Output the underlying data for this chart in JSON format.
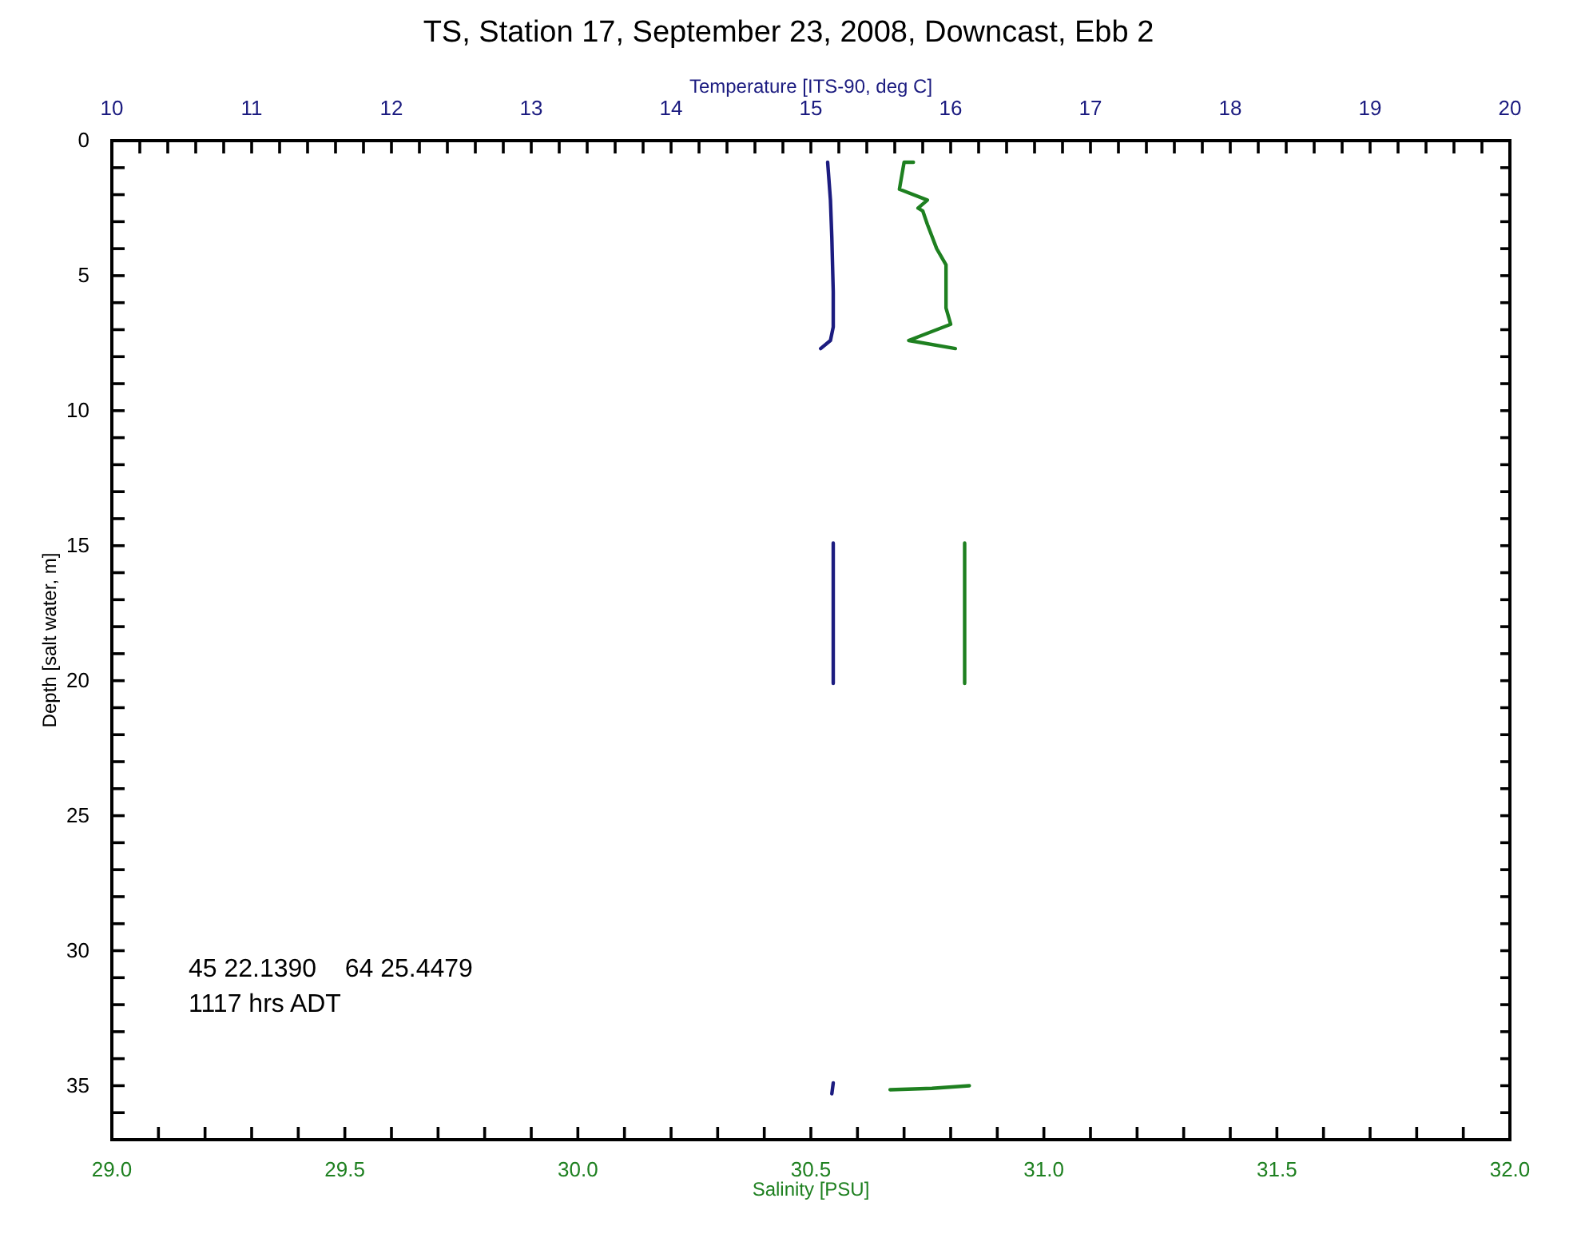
{
  "chart_data": {
    "type": "line",
    "title": "TS, Station 17, September 23, 2008, Downcast, Ebb 2",
    "x2label": "Temperature [ITS-90, deg C]",
    "xlabel": "Salinity [PSU]",
    "ylabel": "Depth [salt water, m]",
    "annotations": [
      "45 22.1390    64 25.4479",
      "1117 hrs ADT"
    ],
    "series": [
      {
        "color": "#1c1c80",
        "axis": "x2",
        "x": [
          15.12,
          15.14,
          15.15,
          15.16,
          15.16,
          15.14,
          15.07,
          null,
          15.16,
          15.16,
          null,
          15.16,
          15.15
        ],
        "values": [
          0.8,
          2.2,
          3.6,
          5.6,
          6.9,
          7.4,
          7.7,
          null,
          14.9,
          20.1,
          null,
          34.9,
          35.3
        ]
      },
      {
        "color": "#1e8020",
        "x": [
          30.72,
          30.7,
          30.69,
          30.75,
          30.73,
          30.74,
          30.75,
          30.77,
          30.79,
          30.79,
          30.79,
          30.8,
          30.71,
          30.81,
          null,
          30.83,
          30.83,
          null,
          30.67,
          30.76,
          30.84
        ],
        "values": [
          0.8,
          0.8,
          1.8,
          2.2,
          2.5,
          2.6,
          3.1,
          4.0,
          4.6,
          5.6,
          6.2,
          6.8,
          7.4,
          7.7,
          null,
          14.9,
          20.1,
          null,
          35.15,
          35.1,
          35.0
        ]
      }
    ],
    "ylim": [
      37,
      0
    ],
    "yticks": [
      0,
      {
        "value": 1,
        "label": null
      },
      {
        "value": 2,
        "label": null
      },
      {
        "value": 3,
        "label": null
      },
      {
        "value": 4,
        "label": null
      },
      5,
      {
        "value": 6,
        "label": null
      },
      {
        "value": 7,
        "label": null
      },
      {
        "value": 8,
        "label": null
      },
      {
        "value": 9,
        "label": null
      },
      10,
      {
        "value": 11,
        "label": null
      },
      {
        "value": 12,
        "label": null
      },
      {
        "value": 13,
        "label": null
      },
      {
        "value": 14,
        "label": null
      },
      15,
      {
        "value": 16,
        "label": null
      },
      {
        "value": 17,
        "label": null
      },
      {
        "value": 18,
        "label": null
      },
      {
        "value": 19,
        "label": null
      },
      20,
      {
        "value": 21,
        "label": null
      },
      {
        "value": 22,
        "label": null
      },
      {
        "value": 23,
        "label": null
      },
      {
        "value": 24,
        "label": null
      },
      25,
      {
        "value": 26,
        "label": null
      },
      {
        "value": 27,
        "label": null
      },
      {
        "value": 28,
        "label": null
      },
      {
        "value": 29,
        "label": null
      },
      30,
      {
        "value": 31,
        "label": null
      },
      {
        "value": 32,
        "label": null
      },
      {
        "value": 33,
        "label": null
      },
      {
        "value": 34,
        "label": null
      },
      35,
      {
        "value": 36,
        "label": null
      }
    ],
    "xlim": [
      29,
      32
    ],
    "xticks": [
      {
        "value": 29,
        "label": "29.0"
      },
      {
        "value": 29.1,
        "label": null
      },
      {
        "value": 29.2,
        "label": null
      },
      {
        "value": 29.3,
        "label": null
      },
      {
        "value": 29.4,
        "label": null
      },
      29.5,
      {
        "value": 29.6,
        "label": null
      },
      {
        "value": 29.7,
        "label": null
      },
      {
        "value": 29.8,
        "label": null
      },
      {
        "value": 29.9,
        "label": null
      },
      {
        "value": 30,
        "label": "30.0"
      },
      {
        "value": 30.1,
        "label": null
      },
      {
        "value": 30.2,
        "label": null
      },
      {
        "value": 30.3,
        "label": null
      },
      {
        "value": 30.4,
        "label": null
      },
      30.5,
      {
        "value": 30.6,
        "label": null
      },
      {
        "value": 30.7,
        "label": null
      },
      {
        "value": 30.8,
        "label": null
      },
      {
        "value": 30.9,
        "label": null
      },
      {
        "value": 31,
        "label": "31.0"
      },
      {
        "value": 31.1,
        "label": null
      },
      {
        "value": 31.2,
        "label": null
      },
      {
        "value": 31.3,
        "label": null
      },
      {
        "value": 31.4,
        "label": null
      },
      31.5,
      {
        "value": 31.6,
        "label": null
      },
      {
        "value": 31.7,
        "label": null
      },
      {
        "value": 31.8,
        "label": null
      },
      {
        "value": 31.9,
        "label": null
      },
      {
        "value": 32,
        "label": "32.0"
      }
    ],
    "x2lim": [
      10,
      20
    ],
    "x2ticks": [
      10,
      {
        "value": 10.2,
        "label": null
      },
      {
        "value": 10.4,
        "label": null
      },
      {
        "value": 10.6,
        "label": null
      },
      {
        "value": 10.8,
        "label": null
      },
      11,
      {
        "value": 11.2,
        "label": null
      },
      {
        "value": 11.4,
        "label": null
      },
      {
        "value": 11.6,
        "label": null
      },
      {
        "value": 11.8,
        "label": null
      },
      12,
      {
        "value": 12.2,
        "label": null
      },
      {
        "value": 12.4,
        "label": null
      },
      {
        "value": 12.6,
        "label": null
      },
      {
        "value": 12.8,
        "label": null
      },
      13,
      {
        "value": 13.2,
        "label": null
      },
      {
        "value": 13.4,
        "label": null
      },
      {
        "value": 13.6,
        "label": null
      },
      {
        "value": 13.8,
        "label": null
      },
      14,
      {
        "value": 14.2,
        "label": null
      },
      {
        "value": 14.4,
        "label": null
      },
      {
        "value": 14.6,
        "label": null
      },
      {
        "value": 14.8,
        "label": null
      },
      15,
      {
        "value": 15.2,
        "label": null
      },
      {
        "value": 15.4,
        "label": null
      },
      {
        "value": 15.6,
        "label": null
      },
      {
        "value": 15.8,
        "label": null
      },
      16,
      {
        "value": 16.2,
        "label": null
      },
      {
        "value": 16.4,
        "label": null
      },
      {
        "value": 16.6,
        "label": null
      },
      {
        "value": 16.8,
        "label": null
      },
      17,
      {
        "value": 17.2,
        "label": null
      },
      {
        "value": 17.4,
        "label": null
      },
      {
        "value": 17.6,
        "label": null
      },
      {
        "value": 17.8,
        "label": null
      },
      18,
      {
        "value": 18.2,
        "label": null
      },
      {
        "value": 18.4,
        "label": null
      },
      {
        "value": 18.6,
        "label": null
      },
      {
        "value": 18.8,
        "label": null
      },
      19,
      {
        "value": 19.2,
        "label": null
      },
      {
        "value": 19.4,
        "label": null
      },
      {
        "value": 19.6,
        "label": null
      },
      {
        "value": 19.8,
        "label": null
      },
      20
    ]
  }
}
